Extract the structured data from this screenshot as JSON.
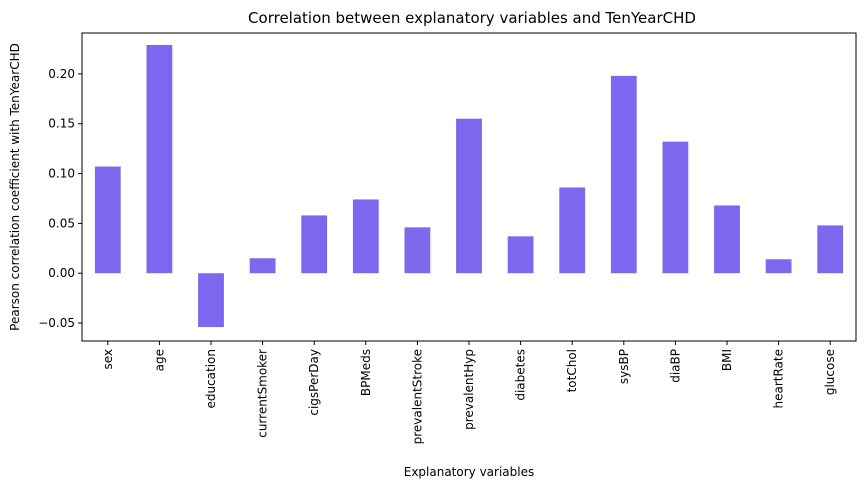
{
  "chart_data": {
    "type": "bar",
    "title": "Correlation between explanatory variables and TenYearCHD",
    "xlabel": "Explanatory variables",
    "ylabel": "Pearson correlation coefficient with TenYearCHD",
    "categories": [
      "sex",
      "age",
      "education",
      "currentSmoker",
      "cigsPerDay",
      "BPMeds",
      "prevalentStroke",
      "prevalentHyp",
      "diabetes",
      "totChol",
      "sysBP",
      "diaBP",
      "BMI",
      "heartRate",
      "glucose"
    ],
    "values": [
      0.107,
      0.229,
      -0.054,
      0.015,
      0.058,
      0.074,
      0.046,
      0.155,
      0.037,
      0.086,
      0.198,
      0.132,
      0.068,
      0.014,
      0.048
    ],
    "ylim": [
      -0.068,
      0.241
    ],
    "yticks": [
      -0.05,
      0.0,
      0.05,
      0.1,
      0.15,
      0.2
    ],
    "ytick_labels": [
      "−0.05",
      "0.00",
      "0.05",
      "0.10",
      "0.15",
      "0.20"
    ],
    "bar_color": "#7b68ee",
    "grid": false,
    "legend": "none"
  }
}
